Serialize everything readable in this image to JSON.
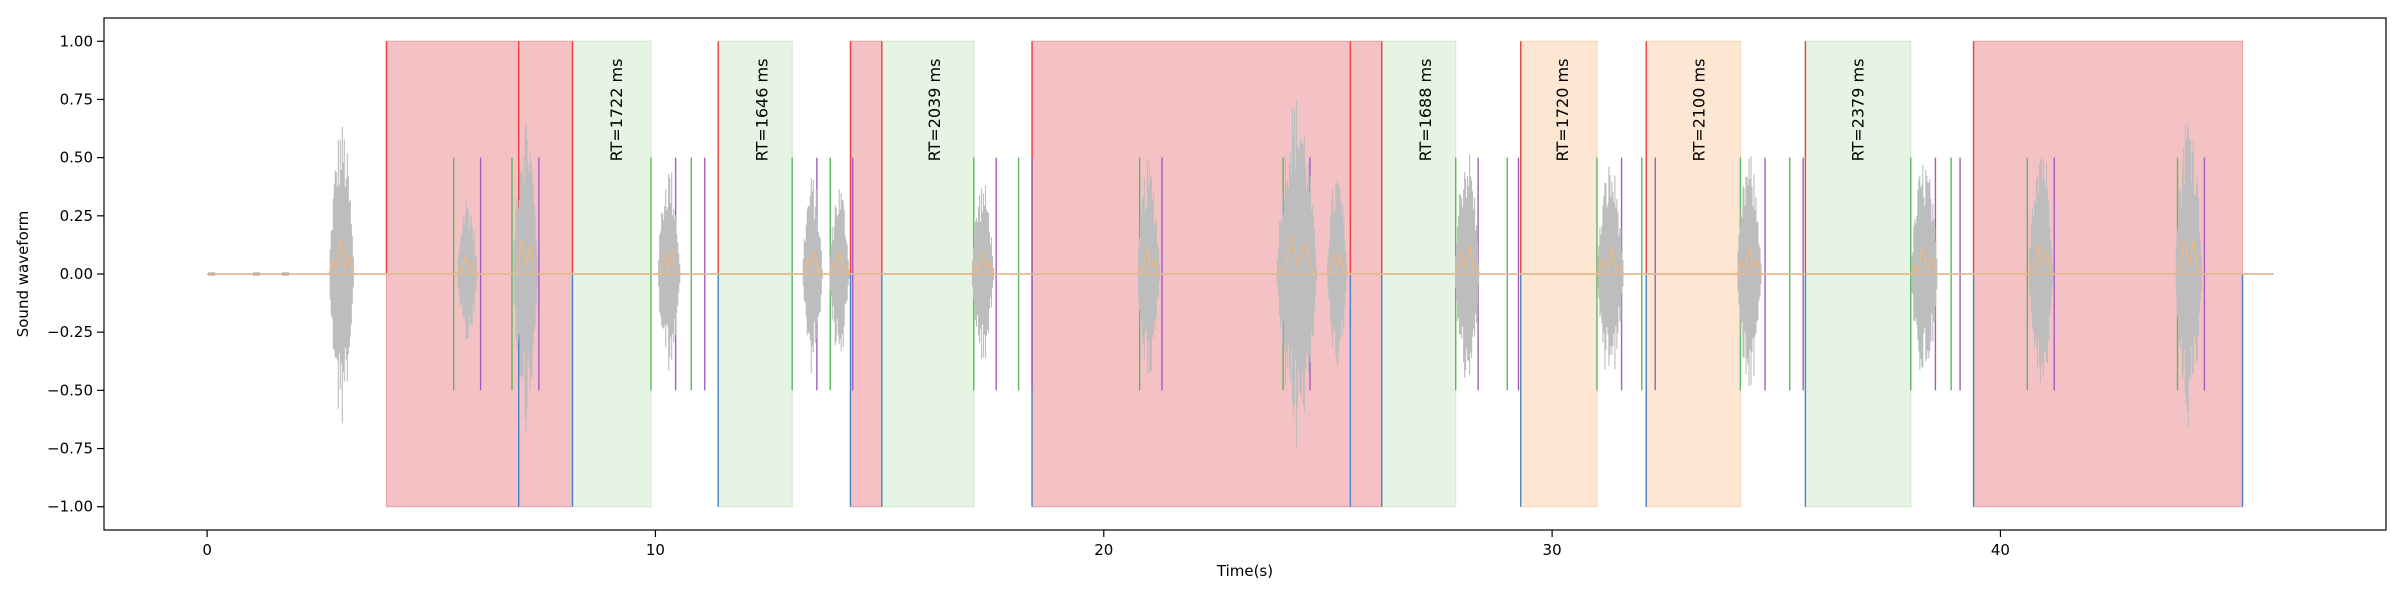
{
  "chart_data": {
    "type": "line",
    "title": "",
    "xlabel": "Time(s)",
    "ylabel": "Sound waveform",
    "xlim": [
      -2.3,
      48.6
    ],
    "ylim": [
      -1.1,
      1.1
    ],
    "xticks": [
      0,
      10,
      20,
      30,
      40
    ],
    "yticks": [
      1.0,
      0.75,
      0.5,
      0.25,
      0.0,
      -0.25,
      -0.5,
      -0.75,
      -1.0
    ],
    "xtick_labels": [
      "0",
      "10",
      "20",
      "30",
      "40"
    ],
    "ytick_labels": [
      "1.00",
      "0.75",
      "0.50",
      "0.25",
      "0.00",
      "−0.25",
      "−0.50",
      "−0.75",
      "−1.00"
    ],
    "grid": false,
    "legend": "none",
    "colors": {
      "waveform": "#bdbdbd",
      "envelope": "#e8b88a",
      "error_fill": "#f4c2c5",
      "correct_fill": "#e6f5e3",
      "late_fill": "#fde7d3",
      "red_line": "#e8413c",
      "blue_line": "#4a82c3",
      "green_line": "#5cb85c",
      "purple_line": "#a55cc0"
    },
    "regions": [
      {
        "type": "error",
        "start": 4.0,
        "end": 8.15
      },
      {
        "type": "correct",
        "start": 8.15,
        "end": 9.9
      },
      {
        "type": "correct",
        "start": 11.4,
        "end": 13.05
      },
      {
        "type": "error",
        "start": 14.35,
        "end": 15.05
      },
      {
        "type": "correct",
        "start": 15.05,
        "end": 17.1
      },
      {
        "type": "error",
        "start": 18.4,
        "end": 26.2
      },
      {
        "type": "correct",
        "start": 26.2,
        "end": 27.85
      },
      {
        "type": "late",
        "start": 29.3,
        "end": 31.0
      },
      {
        "type": "late",
        "start": 32.1,
        "end": 34.2
      },
      {
        "type": "correct",
        "start": 35.65,
        "end": 38.0
      },
      {
        "type": "error",
        "start": 39.4,
        "end": 45.4
      }
    ],
    "rt_labels": [
      {
        "text": "RT=1722 ms",
        "x": 9.25
      },
      {
        "text": "RT=1646 ms",
        "x": 12.5
      },
      {
        "text": "RT=2039 ms",
        "x": 16.35
      },
      {
        "text": "RT=1688 ms",
        "x": 27.3
      },
      {
        "text": "RT=1720 ms",
        "x": 30.35
      },
      {
        "text": "RT=2100 ms",
        "x": 33.4
      },
      {
        "text": "RT=2379 ms",
        "x": 36.95
      }
    ],
    "red_lines": [
      4.0,
      6.95,
      8.15,
      11.4,
      14.35,
      15.05,
      18.4,
      25.5,
      26.2,
      29.3,
      32.1,
      35.65,
      39.4
    ],
    "blue_lines": [
      6.95,
      8.15,
      11.4,
      14.35,
      15.05,
      18.4,
      25.5,
      26.2,
      29.3,
      32.1,
      35.65,
      39.4,
      45.4
    ],
    "green_lines": [
      5.5,
      6.8,
      9.9,
      10.8,
      13.05,
      13.9,
      17.1,
      18.1,
      20.8,
      24.0,
      27.85,
      29.0,
      31.0,
      32.0,
      34.2,
      35.3,
      38.0,
      38.9,
      40.6,
      43.95
    ],
    "purple_lines": [
      6.1,
      7.4,
      10.45,
      11.1,
      13.6,
      14.4,
      17.6,
      18.4,
      21.3,
      24.6,
      28.35,
      29.25,
      31.55,
      32.3,
      34.75,
      35.6,
      38.55,
      39.1,
      41.2,
      44.55
    ],
    "bursts": [
      {
        "center": 3.0,
        "width": 0.55,
        "amp": 0.66
      },
      {
        "center": 5.8,
        "width": 0.45,
        "amp": 0.35
      },
      {
        "center": 7.1,
        "width": 0.55,
        "amp": 0.72
      },
      {
        "center": 10.3,
        "width": 0.5,
        "amp": 0.48
      },
      {
        "center": 13.5,
        "width": 0.45,
        "amp": 0.43
      },
      {
        "center": 14.1,
        "width": 0.45,
        "amp": 0.4
      },
      {
        "center": 17.3,
        "width": 0.5,
        "amp": 0.41
      },
      {
        "center": 21.0,
        "width": 0.5,
        "amp": 0.5
      },
      {
        "center": 24.3,
        "width": 0.9,
        "amp": 0.78
      },
      {
        "center": 25.2,
        "width": 0.45,
        "amp": 0.45
      },
      {
        "center": 28.1,
        "width": 0.55,
        "amp": 0.56
      },
      {
        "center": 31.3,
        "width": 0.6,
        "amp": 0.49
      },
      {
        "center": 34.4,
        "width": 0.55,
        "amp": 0.52
      },
      {
        "center": 38.3,
        "width": 0.6,
        "amp": 0.5
      },
      {
        "center": 40.9,
        "width": 0.55,
        "amp": 0.63
      },
      {
        "center": 44.2,
        "width": 0.6,
        "amp": 0.74
      }
    ],
    "baseline_end": 46.1
  }
}
